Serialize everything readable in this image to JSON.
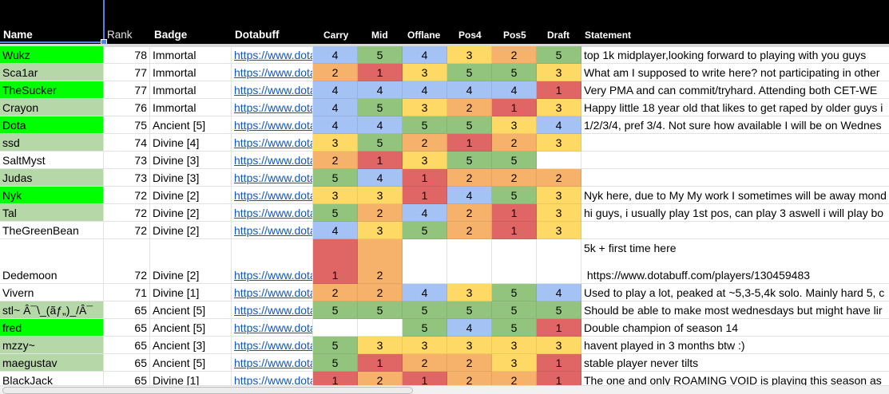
{
  "colors": {
    "bright_green": "#00ff00",
    "light_green": "#b6d7a8",
    "score_1": "#e06666",
    "score_2": "#f6b26b",
    "score_3": "#ffd966",
    "score_4": "#a4c2f4",
    "score_5": "#93c47d",
    "link": "#1155cc",
    "header_bg": "#000000"
  },
  "header": {
    "name": "Name",
    "rank": "Rank",
    "badge": "Badge",
    "dotabuff": "Dotabuff",
    "carry": "Carry",
    "mid": "Mid",
    "offlane": "Offlane",
    "pos4": "Pos4",
    "pos5": "Pos5",
    "draft": "Draft",
    "statement": "Statement"
  },
  "rows": [
    {
      "name": "Wukz",
      "name_bg": "bright_green",
      "rank": "78",
      "badge": "Immortal",
      "dotabuff": "https://www.dota",
      "scores": [
        "4",
        "5",
        "4",
        "3",
        "2",
        "5"
      ],
      "statement": "top 1k midplayer,looking forward to playing with you guys"
    },
    {
      "name": "Sca1ar",
      "name_bg": "light_green",
      "rank": "77",
      "badge": "Immortal",
      "dotabuff": "https://www.dota",
      "scores": [
        "2",
        "1",
        "3",
        "5",
        "5",
        "3"
      ],
      "statement": "What am I supposed to write here? not participating in other"
    },
    {
      "name": "TheSucker",
      "name_bg": "bright_green",
      "rank": "77",
      "badge": "Immortal",
      "dotabuff": "https://www.dota",
      "scores": [
        "4",
        "4",
        "4",
        "4",
        "4",
        "1"
      ],
      "statement": "Very PMA and can commit/tryhard. Attending both CET-WE"
    },
    {
      "name": "Crayon",
      "name_bg": "light_green",
      "rank": "76",
      "badge": "Immortal",
      "dotabuff": "https://www.dota",
      "scores": [
        "4",
        "5",
        "3",
        "2",
        "1",
        "3"
      ],
      "statement": "Happy little 18 year old that likes to get raped by older guys i"
    },
    {
      "name": "Dota",
      "name_bg": "bright_green",
      "rank": "75",
      "badge": "Ancient [5]",
      "dotabuff": "https://www.dota",
      "scores": [
        "4",
        "4",
        "5",
        "5",
        "3",
        "4"
      ],
      "statement": "1/2/3/4, pref 3/4. Not sure how available I will be on Wednes"
    },
    {
      "name": "ssd",
      "name_bg": "light_green",
      "rank": "74",
      "badge": "Divine [4]",
      "dotabuff": "https://www.dota",
      "scores": [
        "3",
        "5",
        "2",
        "1",
        "2",
        "3"
      ],
      "statement": ""
    },
    {
      "name": "SaltMyst",
      "name_bg": "none",
      "rank": "73",
      "badge": "Divine [3]",
      "dotabuff": "https://www.dota",
      "scores": [
        "2",
        "1",
        "3",
        "5",
        "5",
        ""
      ],
      "statement": ""
    },
    {
      "name": "Judas",
      "name_bg": "light_green",
      "rank": "73",
      "badge": "Divine [3]",
      "dotabuff": "https://www.dota",
      "scores": [
        "5",
        "4",
        "1",
        "2",
        "2",
        "2"
      ],
      "statement": ""
    },
    {
      "name": "Nyk",
      "name_bg": "bright_green",
      "rank": "72",
      "badge": "Divine [2]",
      "dotabuff": "https://www.dota",
      "scores": [
        "3",
        "3",
        "1",
        "4",
        "5",
        "3"
      ],
      "statement": "Nyk here, due to My My work I sometimes will be away mond"
    },
    {
      "name": "Tal",
      "name_bg": "light_green",
      "rank": "72",
      "badge": "Divine [2]",
      "dotabuff": "https://www.dota",
      "scores": [
        "5",
        "2",
        "4",
        "2",
        "1",
        "3"
      ],
      "statement": "hi guys, i usually play 1st pos, can play 3 aswell i will play bo"
    },
    {
      "name": "TheGreenBean",
      "name_bg": "none",
      "rank": "72",
      "badge": "Divine [2]",
      "dotabuff": "https://www.dota",
      "scores": [
        "4",
        "3",
        "5",
        "2",
        "1",
        "3"
      ],
      "statement": ""
    },
    {
      "name": "Dedemoon",
      "name_bg": "none",
      "rank": "72",
      "badge": "Divine [2]",
      "dotabuff": "https://www.dota",
      "scores": [
        "1",
        "2",
        "",
        "",
        "",
        ""
      ],
      "statement": "5k + first time here\n\n https://www.dotabuff.com/players/130459483",
      "tall": true
    },
    {
      "name": "Vivern",
      "name_bg": "none",
      "rank": "71",
      "badge": "Divine [1]",
      "dotabuff": "https://www.dota",
      "scores": [
        "2",
        "2",
        "4",
        "3",
        "5",
        "4"
      ],
      "statement": "Used to play a lot, peaked at ~5,3-5,4k solo. Mainly hard 5, c"
    },
    {
      "name": "stl~ Â¯\\_(ãƒ„)_/Â¯",
      "name_bg": "light_green",
      "rank": "65",
      "badge": "Ancient [5]",
      "dotabuff": "https://www.dota",
      "scores": [
        "5",
        "5",
        "5",
        "5",
        "5",
        "5"
      ],
      "statement": "Should be able to make most wednesdays but might have lir"
    },
    {
      "name": "fred",
      "name_bg": "bright_green",
      "rank": "65",
      "badge": "Ancient [5]",
      "dotabuff": "https://www.dota",
      "scores": [
        "",
        "",
        "5",
        "4",
        "5",
        "1"
      ],
      "statement": "Double champion of season 14"
    },
    {
      "name": "mzzy~",
      "name_bg": "light_green",
      "rank": "65",
      "badge": "Ancient [3]",
      "dotabuff": "https://www.dota",
      "scores": [
        "5",
        "3",
        "3",
        "3",
        "3",
        "3"
      ],
      "statement": "havent played in 3 months btw :)"
    },
    {
      "name": "maegustav",
      "name_bg": "light_green",
      "rank": "65",
      "badge": "Ancient [5]",
      "dotabuff": "https://www.dota",
      "scores": [
        "5",
        "1",
        "2",
        "2",
        "3",
        "1"
      ],
      "statement": "stable player never tilts"
    },
    {
      "name": "BlackJack",
      "name_bg": "none",
      "rank": "65",
      "badge": "Divine [1]",
      "dotabuff": "https://www.dota",
      "scores": [
        "1",
        "2",
        "1",
        "2",
        "2",
        "1"
      ],
      "statement": "The one and only ROAMING VOID is playing this season as"
    }
  ]
}
